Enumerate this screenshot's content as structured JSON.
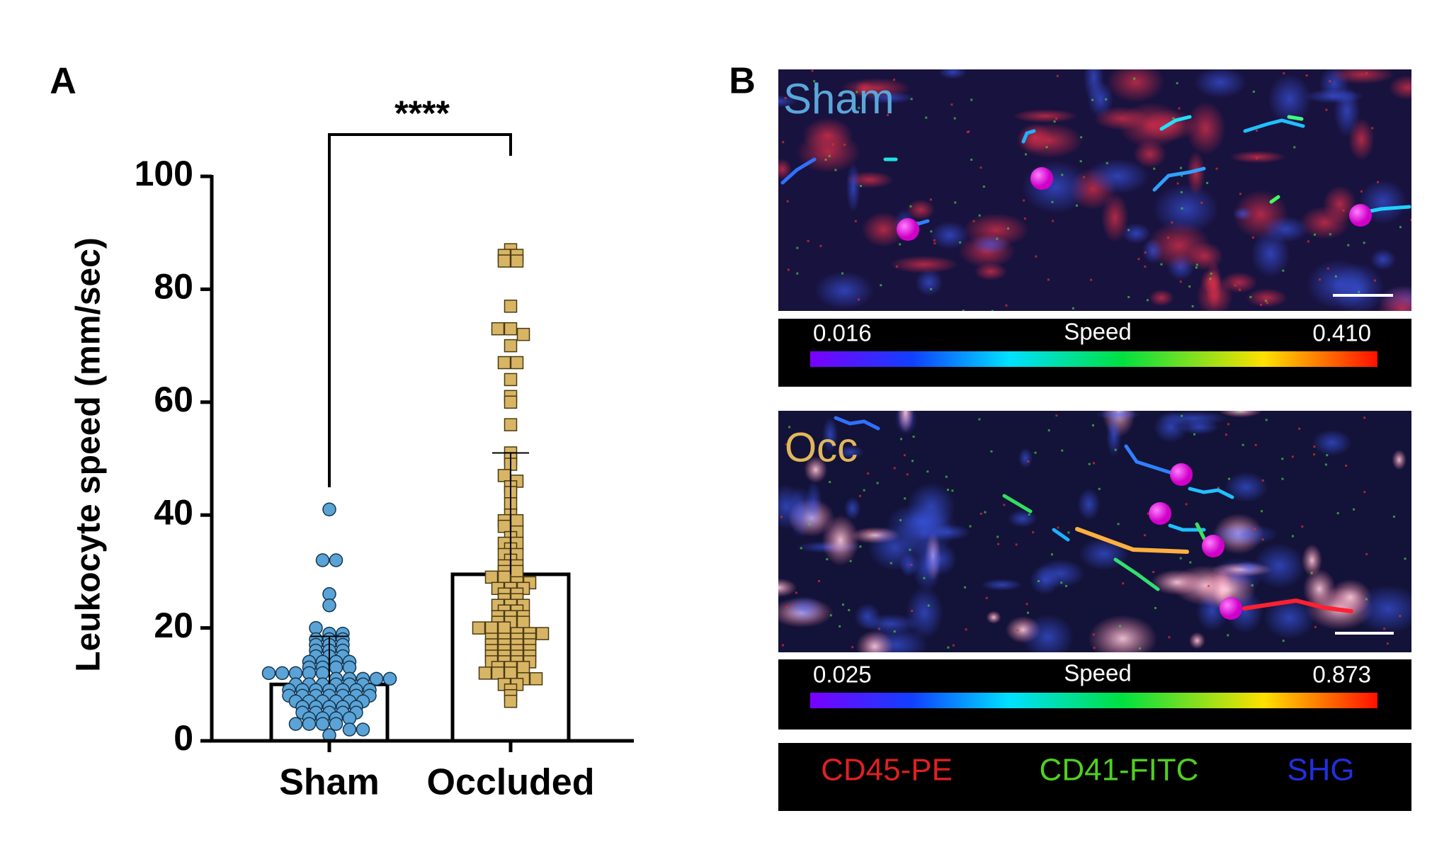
{
  "chart_data": {
    "type": "bar",
    "panel_label": "A",
    "ylabel": "Leukocyte speed (mm/sec)",
    "categories": [
      "Sham",
      "Occluded"
    ],
    "values": [
      10,
      29.5
    ],
    "errors": [
      8.5,
      21.5
    ],
    "points": [
      [
        41,
        32,
        32,
        26,
        24,
        20,
        19,
        19,
        18,
        18,
        18,
        17,
        17,
        17,
        16,
        16,
        16,
        15,
        15,
        15,
        14,
        14,
        14,
        14,
        13,
        13,
        13,
        13,
        12,
        12,
        12,
        12,
        12,
        11,
        11,
        11,
        11,
        11,
        10,
        10,
        10,
        10,
        10,
        10,
        9,
        9,
        9,
        9,
        9,
        9,
        9,
        8,
        8,
        8,
        8,
        8,
        8,
        8,
        7,
        7,
        7,
        7,
        7,
        7,
        6,
        6,
        6,
        6,
        6,
        5,
        5,
        5,
        5,
        5,
        4,
        4,
        4,
        4,
        3,
        3,
        3,
        3,
        2,
        2,
        1
      ],
      [
        87,
        86,
        86,
        85,
        85,
        77,
        73,
        73,
        72,
        70,
        67,
        67,
        64,
        61,
        60,
        56,
        51,
        50,
        49,
        47,
        46,
        45,
        44,
        42,
        40,
        39,
        39,
        38,
        37,
        36,
        35,
        35,
        34,
        33,
        33,
        32,
        31,
        31,
        30,
        30,
        29,
        29,
        28,
        28,
        27,
        27,
        27,
        26,
        26,
        25,
        25,
        24,
        24,
        24,
        23,
        23,
        22,
        22,
        22,
        21,
        21,
        21,
        20,
        20,
        20,
        19,
        19,
        19,
        18,
        18,
        18,
        18,
        17,
        17,
        17,
        17,
        16,
        16,
        16,
        16,
        15,
        15,
        15,
        15,
        14,
        14,
        14,
        14,
        13,
        13,
        13,
        12,
        12,
        12,
        11,
        11,
        10,
        10,
        9,
        8,
        7
      ]
    ],
    "point_colors": [
      "#5ba3d6",
      "#d8b565"
    ],
    "markers": [
      "circle",
      "square"
    ],
    "annotation": "****",
    "ylim": [
      0,
      100
    ],
    "yticks": [
      0,
      20,
      40,
      60,
      80,
      100
    ]
  },
  "panel_b": {
    "label": "B",
    "images": [
      {
        "label": "Sham",
        "scale": {
          "min": "0.016",
          "title": "Speed",
          "max": "0.410"
        }
      },
      {
        "label": "Occ",
        "scale": {
          "min": "0.025",
          "title": "Speed",
          "max": "0.873"
        }
      }
    ],
    "legend": [
      "CD45-PE",
      "CD41-FITC",
      "SHG"
    ]
  }
}
